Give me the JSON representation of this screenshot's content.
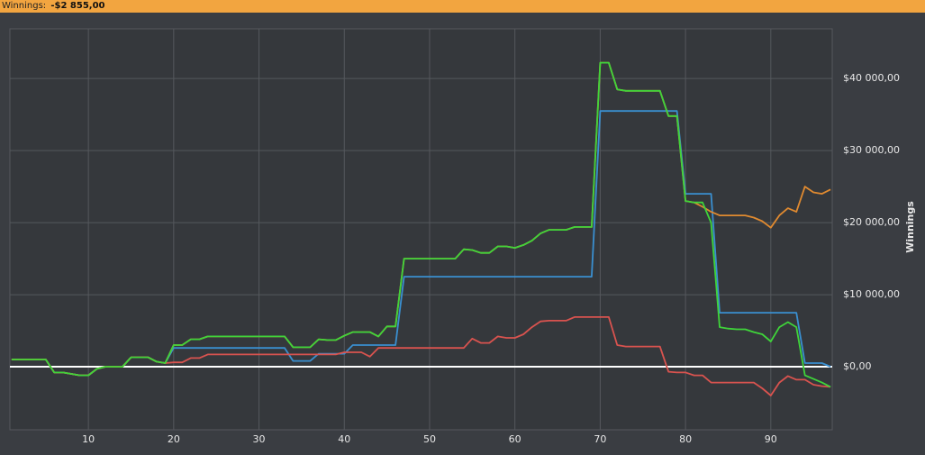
{
  "header": {
    "label": "Winnings:",
    "value": "-$2 855,00"
  },
  "chart_data": {
    "type": "line",
    "y_label": "Winnings",
    "x": [
      1,
      2,
      3,
      4,
      5,
      6,
      7,
      8,
      9,
      10,
      11,
      12,
      13,
      14,
      15,
      16,
      17,
      18,
      19,
      20,
      21,
      22,
      23,
      24,
      25,
      26,
      27,
      28,
      29,
      30,
      31,
      32,
      33,
      34,
      35,
      36,
      37,
      38,
      39,
      40,
      41,
      42,
      43,
      44,
      45,
      46,
      47,
      48,
      49,
      50,
      51,
      52,
      53,
      54,
      55,
      56,
      57,
      58,
      59,
      60,
      61,
      62,
      63,
      64,
      65,
      66,
      67,
      68,
      69,
      70,
      71,
      72,
      73,
      74,
      75,
      76,
      77,
      78,
      79,
      80,
      81,
      82,
      83,
      84,
      85,
      86,
      87,
      88,
      89,
      90,
      91,
      92,
      93,
      94,
      95,
      96,
      97
    ],
    "xlim": [
      0.8,
      97.2
    ],
    "xticks": [
      10,
      20,
      30,
      40,
      50,
      60,
      70,
      80,
      90
    ],
    "ylim": [
      -8750,
      46900
    ],
    "yticks": [
      {
        "value": 0,
        "label": "$0,00"
      },
      {
        "value": 10000,
        "label": "$10 000,00"
      },
      {
        "value": 20000,
        "label": "$20 000,00"
      },
      {
        "value": 30000,
        "label": "$30 000,00"
      },
      {
        "value": 40000,
        "label": "$40 000,00"
      }
    ],
    "grid": true,
    "series": [
      {
        "color": "#3a8fd0",
        "values": [
          1000,
          1000,
          1000,
          1000,
          1000,
          -800,
          -800,
          -1000,
          -1200,
          -1200,
          -300,
          0,
          0,
          0,
          1300,
          1300,
          1300,
          700,
          500,
          2600,
          2600,
          2600,
          2600,
          2600,
          2600,
          2600,
          2600,
          2600,
          2600,
          2600,
          2600,
          2600,
          2600,
          800,
          800,
          800,
          1800,
          1800,
          1800,
          1800,
          3000,
          3000,
          3000,
          3000,
          3000,
          3000,
          12500,
          12500,
          12500,
          12500,
          12500,
          12500,
          12500,
          12500,
          12500,
          12500,
          12500,
          12500,
          12500,
          12500,
          12500,
          12500,
          12500,
          12500,
          12500,
          12500,
          12500,
          12500,
          12500,
          35500,
          35500,
          35500,
          35500,
          35500,
          35500,
          35500,
          35500,
          35500,
          35500,
          24000,
          24000,
          24000,
          24000,
          7500,
          7500,
          7500,
          7500,
          7500,
          7500,
          7500,
          7500,
          7500,
          7500,
          500,
          500,
          500,
          0
        ]
      },
      {
        "color": "#d9534f",
        "values": [
          1000,
          1000,
          1000,
          1000,
          1000,
          -800,
          -800,
          -1000,
          -1200,
          -1200,
          -300,
          0,
          0,
          0,
          1300,
          1300,
          1300,
          700,
          500,
          600,
          600,
          1200,
          1200,
          1700,
          1700,
          1700,
          1700,
          1700,
          1700,
          1700,
          1700,
          1700,
          1700,
          1700,
          1700,
          1700,
          1700,
          1700,
          1700,
          2000,
          2000,
          2000,
          1400,
          2600,
          2600,
          2600,
          2600,
          2600,
          2600,
          2600,
          2600,
          2600,
          2600,
          2600,
          3900,
          3300,
          3300,
          4200,
          4000,
          4000,
          4500,
          5500,
          6300,
          6400,
          6400,
          6400,
          6900,
          6900,
          6900,
          6900,
          6900,
          3000,
          2800,
          2800,
          2800,
          2800,
          2800,
          -700,
          -800,
          -800,
          -1200,
          -1200,
          -2200,
          -2200,
          -2200,
          -2200,
          -2200,
          -2200,
          -3000,
          -4000,
          -2200,
          -1300,
          -1800,
          -1800,
          -2500,
          -2700,
          -2800
        ]
      },
      {
        "color": "#e08a30",
        "values": [
          1000,
          1000,
          1000,
          1000,
          1000,
          -800,
          -800,
          -1000,
          -1200,
          -1200,
          -300,
          0,
          0,
          0,
          1300,
          1300,
          1300,
          700,
          500,
          3000,
          3000,
          3800,
          3800,
          4200,
          4200,
          4200,
          4200,
          4200,
          4200,
          4200,
          4200,
          4200,
          4200,
          2700,
          2700,
          2700,
          3800,
          3700,
          3700,
          4300,
          4800,
          4800,
          4800,
          4200,
          5600,
          5600,
          15000,
          15000,
          15000,
          15000,
          15000,
          15000,
          15000,
          16300,
          16200,
          15800,
          15800,
          16700,
          16700,
          16500,
          16900,
          17500,
          18500,
          19000,
          19000,
          19000,
          19400,
          19400,
          19400,
          42200,
          42200,
          38500,
          38300,
          38300,
          38300,
          38300,
          38300,
          34800,
          34800,
          23000,
          22800,
          22200,
          21500,
          21000,
          21000,
          21000,
          21000,
          20700,
          20200,
          19300,
          21000,
          22000,
          21500,
          25000,
          24200,
          24000,
          24600
        ]
      },
      {
        "color": "#3fd43a",
        "values": [
          1000,
          1000,
          1000,
          1000,
          1000,
          -800,
          -800,
          -1000,
          -1200,
          -1200,
          -300,
          0,
          0,
          0,
          1300,
          1300,
          1300,
          700,
          500,
          3000,
          3000,
          3800,
          3800,
          4200,
          4200,
          4200,
          4200,
          4200,
          4200,
          4200,
          4200,
          4200,
          4200,
          2700,
          2700,
          2700,
          3800,
          3700,
          3700,
          4300,
          4800,
          4800,
          4800,
          4200,
          5600,
          5600,
          15000,
          15000,
          15000,
          15000,
          15000,
          15000,
          15000,
          16300,
          16200,
          15800,
          15800,
          16700,
          16700,
          16500,
          16900,
          17500,
          18500,
          19000,
          19000,
          19000,
          19400,
          19400,
          19400,
          42200,
          42200,
          38500,
          38300,
          38300,
          38300,
          38300,
          38300,
          34800,
          34800,
          23000,
          22800,
          22800,
          20000,
          5500,
          5300,
          5200,
          5200,
          4800,
          4500,
          3500,
          5500,
          6200,
          5500,
          -1200,
          -1700,
          -2200,
          -2800
        ]
      }
    ]
  }
}
